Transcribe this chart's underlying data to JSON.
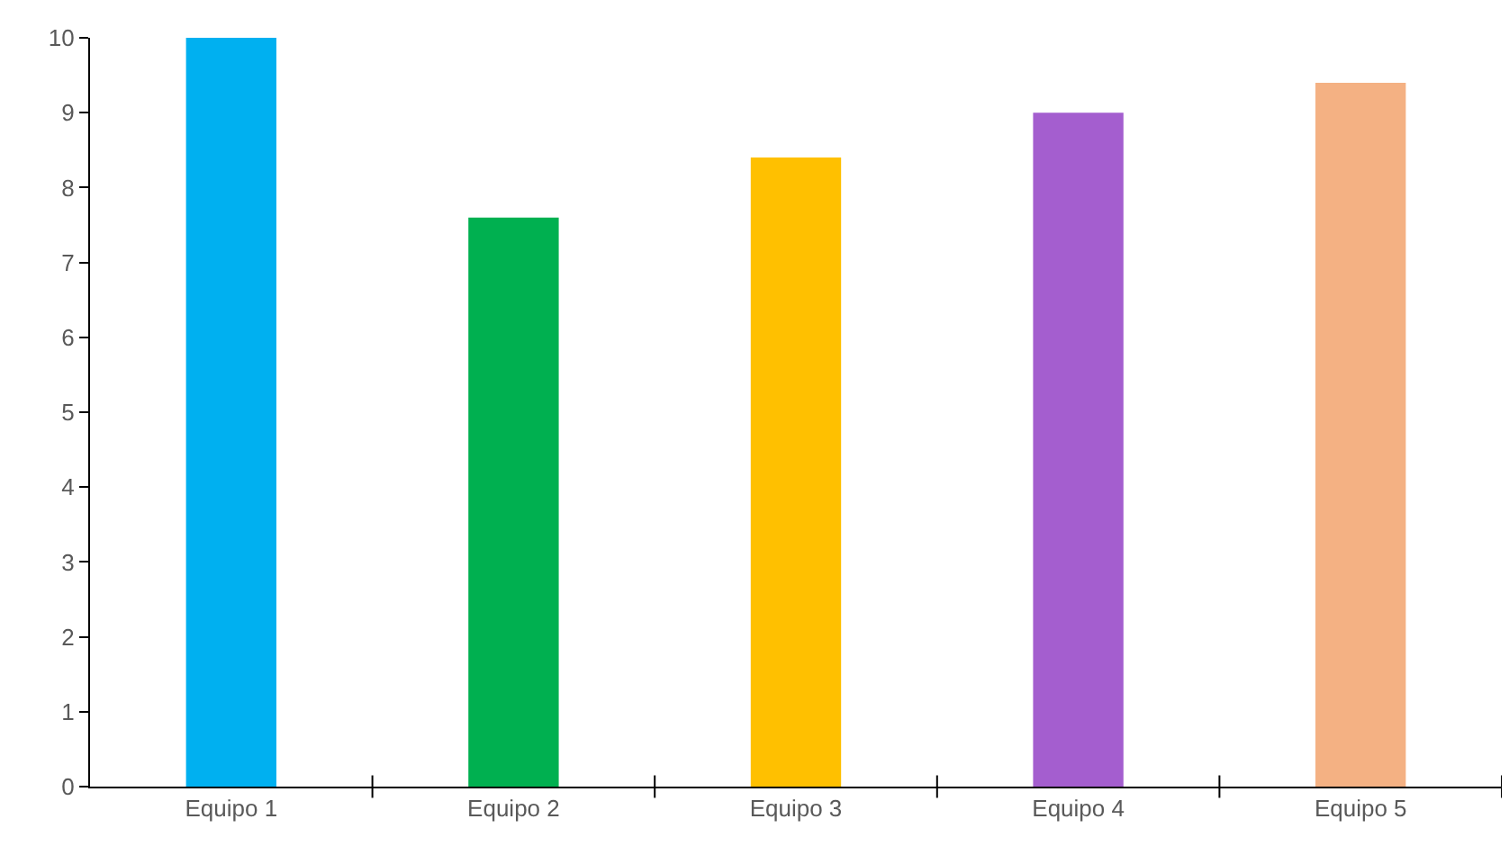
{
  "chart_data": {
    "type": "bar",
    "categories": [
      "Equipo 1",
      "Equipo 2",
      "Equipo 3",
      "Equipo 4",
      "Equipo 5"
    ],
    "values": [
      10,
      7.6,
      8.4,
      9.0,
      9.4
    ],
    "colors": [
      "#00b0f0",
      "#00b050",
      "#ffc000",
      "#a45ecf",
      "#f4b183"
    ],
    "ylim": [
      0,
      10
    ],
    "yticks": [
      0,
      1,
      2,
      3,
      4,
      5,
      6,
      7,
      8,
      9,
      10
    ]
  }
}
